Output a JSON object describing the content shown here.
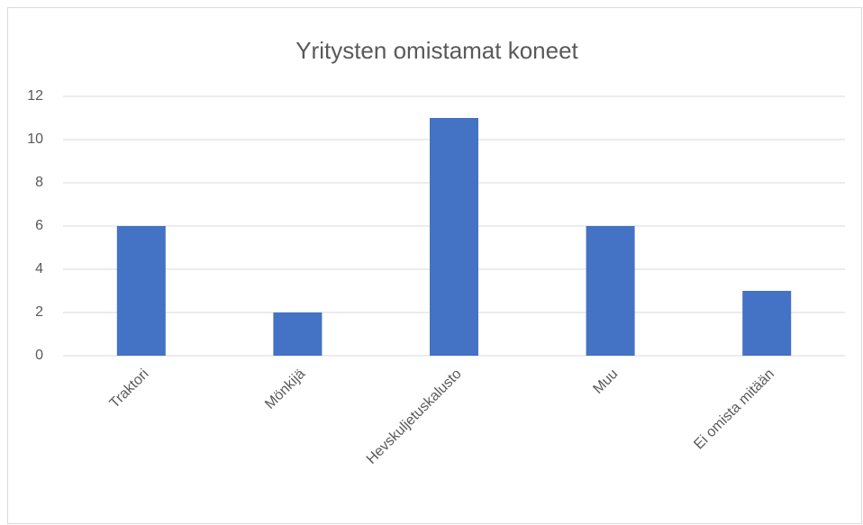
{
  "chart_data": {
    "type": "bar",
    "title": "Yritysten omistamat koneet",
    "categories": [
      "Traktori",
      "Mönkijä",
      "Hevskuljetuskalusto",
      "Muu",
      "Ei omista mitään"
    ],
    "values": [
      6,
      2,
      11,
      6,
      3
    ],
    "color": "#4472c4",
    "ylim": [
      0,
      12
    ],
    "yticks": [
      0,
      2,
      4,
      6,
      8,
      10,
      12
    ],
    "grid": true
  }
}
